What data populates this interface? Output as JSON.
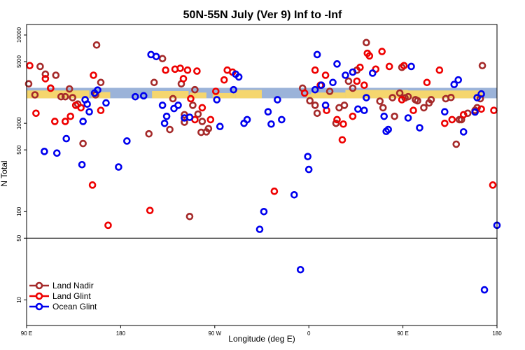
{
  "chart_data": {
    "type": "scatter",
    "title": "50N-55N July (Ver 9)   Inf to -Inf",
    "xlabel": "Longitude (deg E)",
    "ylabel": "N Total",
    "x_ticks": [
      {
        "value": 90,
        "label": "90 E"
      },
      {
        "value": 180,
        "label": "180"
      },
      {
        "value": 270,
        "label": "90 W"
      },
      {
        "value": 360,
        "label": "0"
      },
      {
        "value": 450,
        "label": "90 E"
      },
      {
        "value": 540,
        "label": "180"
      }
    ],
    "xlim": [
      90,
      540
    ],
    "y_scale": "log",
    "ylim": [
      7,
      12000
    ],
    "y_ticks": [
      {
        "value": 10,
        "label": "10"
      },
      {
        "value": 50,
        "label": "50"
      },
      {
        "value": 100,
        "label": "100"
      },
      {
        "value": 500,
        "label": "500"
      },
      {
        "value": 1000,
        "label": "1000"
      },
      {
        "value": 5000,
        "label": "5000"
      },
      {
        "value": 10000,
        "label": "10000"
      }
    ],
    "reference_line_y": 50,
    "map_band": {
      "y_low": 1920,
      "y_high": 2520
    },
    "legend_position": "bottom-left",
    "series": [
      {
        "name": "Land Nadir",
        "color": "#a52a2a",
        "x": [
          92,
          98,
          103,
          108,
          113,
          118,
          123,
          127,
          131,
          134,
          139,
          144,
          156,
          157,
          161,
          207,
          212,
          220,
          227,
          230,
          238,
          241,
          241,
          246,
          249,
          251,
          254,
          257,
          258,
          262,
          264,
          354,
          361,
          366,
          368,
          380,
          386,
          389,
          394,
          398,
          402,
          406,
          415,
          428,
          431,
          440,
          442,
          447,
          449,
          452,
          455,
          462,
          464,
          470,
          475,
          477,
          491,
          496,
          501,
          504,
          506,
          512,
          519,
          521,
          524,
          526
        ],
        "y": [
          2800,
          2100,
          4400,
          3600,
          2500,
          3500,
          2000,
          2000,
          2450,
          1950,
          1650,
          590,
          2100,
          7700,
          2900,
          760,
          2900,
          5400,
          850,
          1900,
          2800,
          1030,
          1250,
          88,
          1600,
          2400,
          1270,
          790,
          1050,
          800,
          870,
          2500,
          1800,
          1600,
          1300,
          2300,
          1000,
          1500,
          1600,
          3000,
          2500,
          4000,
          8200,
          1780,
          1500,
          1950,
          1200,
          2200,
          4300,
          1940,
          2000,
          1850,
          1800,
          1500,
          1700,
          1850,
          1900,
          1960,
          580,
          1100,
          1100,
          1300,
          1400,
          1500,
          1900,
          4500
        ]
      },
      {
        "name": "Land Glint",
        "color": "#ee0000",
        "x": [
          93,
          99,
          108,
          113,
          117,
          127,
          132,
          137,
          142,
          153,
          154,
          161,
          168,
          208,
          223,
          232,
          237,
          240,
          244,
          247,
          251,
          253,
          258,
          266,
          271,
          279,
          282,
          287,
          327,
          356,
          366,
          371,
          376,
          377,
          387,
          392,
          393,
          402,
          406,
          409,
          413,
          416,
          418,
          424,
          430,
          437,
          449,
          451,
          460,
          473,
          485,
          490,
          497,
          508,
          525,
          536,
          537
        ],
        "y": [
          4500,
          1300,
          3200,
          2500,
          1050,
          1050,
          1200,
          1600,
          1500,
          200,
          3500,
          1400,
          70,
          103,
          4000,
          4100,
          4200,
          3200,
          4000,
          1900,
          1100,
          3900,
          1500,
          1100,
          2300,
          3100,
          4000,
          3800,
          170,
          2200,
          4000,
          2700,
          3500,
          1400,
          1100,
          650,
          980,
          1200,
          3000,
          4300,
          2700,
          6200,
          5800,
          4100,
          6500,
          4400,
          1850,
          4500,
          1400,
          2900,
          4000,
          1000,
          1100,
          1250,
          1450,
          200,
          1400
        ]
      },
      {
        "name": "Ocean Glint",
        "color": "#0000ee",
        "x": [
          107,
          119,
          128,
          143,
          144,
          146,
          148,
          150,
          155,
          158,
          166,
          178,
          186,
          194,
          202,
          209,
          214,
          220,
          222,
          224,
          231,
          235,
          241,
          246,
          272,
          275,
          288,
          290,
          293,
          298,
          301,
          313,
          317,
          321,
          324,
          330,
          334,
          346,
          352,
          359,
          360,
          366,
          368,
          372,
          376,
          383,
          387,
          395,
          402,
          407,
          413,
          415,
          421,
          432,
          434,
          436,
          455,
          458,
          466,
          490,
          499,
          503,
          508,
          519,
          521,
          525,
          528,
          540
        ],
        "y": [
          480,
          460,
          670,
          340,
          1050,
          1850,
          1650,
          1350,
          2200,
          2380,
          1700,
          320,
          630,
          2000,
          2050,
          6000,
          5700,
          1600,
          1000,
          1200,
          1470,
          1600,
          1150,
          1170,
          1850,
          920,
          2400,
          3600,
          3350,
          1000,
          1100,
          63,
          100,
          1350,
          980,
          1850,
          1100,
          155,
          22,
          420,
          300,
          2400,
          6000,
          2700,
          1600,
          2900,
          4700,
          3500,
          3800,
          1450,
          1400,
          1950,
          3700,
          1200,
          810,
          850,
          1150,
          4400,
          890,
          1350,
          2750,
          3100,
          800,
          1340,
          1950,
          2150,
          13,
          70
        ]
      }
    ]
  }
}
